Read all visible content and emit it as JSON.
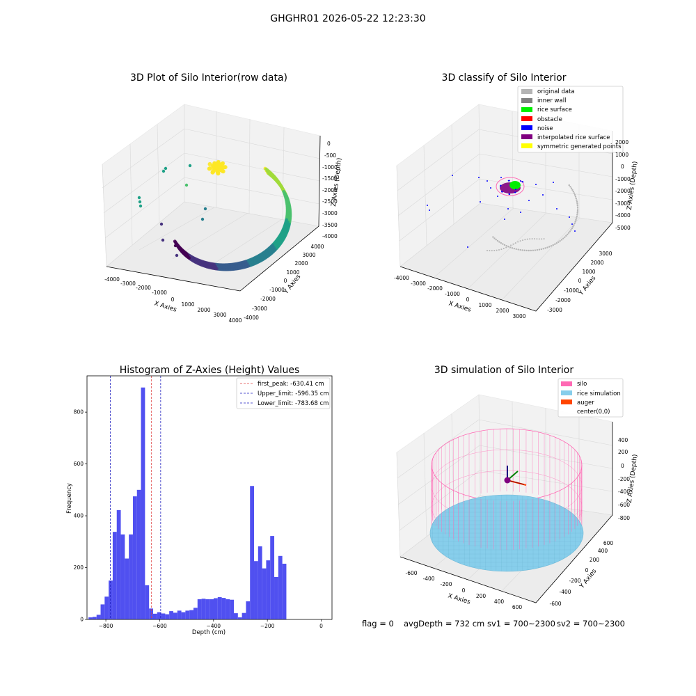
{
  "suptitle": "GHGHR01 2026-05-22 12:23:30",
  "footer": {
    "flag": "flag = 0",
    "avg_depth": "avgDepth = 732 cm",
    "sv1": "sv1 = 700~2300",
    "sv2": "sv2 = 700~2300"
  },
  "colors": {
    "hist_bar": "#5050f0",
    "first_peak": "#e04040",
    "limits": "#2020c0",
    "silo": "#ff69b4",
    "rice": "#87ceeb",
    "auger": "#ff4500"
  },
  "chart_data": [
    {
      "type": "scatter",
      "projection": "3d",
      "title": "3D Plot of Silo Interior(row data)",
      "xlabel": "X Axies",
      "ylabel": "Y Axies",
      "zlabel": "Z Axies (Depth)",
      "xticks": [
        "-4000",
        "-3000",
        "-2000",
        "-1000",
        "0",
        "1000",
        "2000",
        "3000",
        "4000"
      ],
      "yticks": [
        "-4000",
        "-3000",
        "-2000",
        "-1000",
        "0",
        "1000",
        "2000",
        "3000",
        "4000"
      ],
      "zticks": [
        "0",
        "-500",
        "-1000",
        "-1500",
        "-2000",
        "-2500",
        "-3000",
        "-3500",
        "-4000"
      ],
      "colormap": "viridis",
      "grid": true
    },
    {
      "type": "scatter",
      "projection": "3d",
      "title": "3D classify of Silo Interior",
      "xlabel": "X Axies",
      "ylabel": "Y Axies",
      "zlabel": "Z Axies (Depth)",
      "xticks": [
        "-4000",
        "-3000",
        "-2000",
        "-1000",
        "0",
        "1000",
        "2000",
        "3000"
      ],
      "yticks": [
        "-3000",
        "-2000",
        "-1000",
        "0",
        "1000",
        "2000",
        "3000"
      ],
      "zticks": [
        "2000",
        "1000",
        "0",
        "-1000",
        "-2000",
        "-3000",
        "-4000",
        "-5000"
      ],
      "legend_position": "top-right",
      "legend": [
        {
          "label": "original data",
          "color": "#b4b4b4"
        },
        {
          "label": "inner wall",
          "color": "#808080"
        },
        {
          "label": "rice surface",
          "color": "#00ee00"
        },
        {
          "label": "obstacle",
          "color": "#ff0000"
        },
        {
          "label": "noise",
          "color": "#0000ff"
        },
        {
          "label": "interpolated rice surface",
          "color": "#800080"
        },
        {
          "label": "symmetric generated points",
          "color": "#ffff00"
        }
      ],
      "grid": true
    },
    {
      "type": "bar",
      "title": "Histogram of Z-Axies (Height) Values",
      "xlabel": "Depth (cm)",
      "ylabel": "Frequency",
      "xlim": [
        -870,
        40
      ],
      "ylim": [
        0,
        940
      ],
      "xticks": [
        -800,
        -600,
        -400,
        -200,
        0
      ],
      "yticks": [
        0,
        200,
        400,
        600,
        800
      ],
      "bin_width": 15,
      "bins": [
        {
          "x": -857,
          "y": 8
        },
        {
          "x": -842,
          "y": 10
        },
        {
          "x": -827,
          "y": 18
        },
        {
          "x": -812,
          "y": 58
        },
        {
          "x": -797,
          "y": 88
        },
        {
          "x": -782,
          "y": 150
        },
        {
          "x": -767,
          "y": 338
        },
        {
          "x": -752,
          "y": 422
        },
        {
          "x": -737,
          "y": 328
        },
        {
          "x": -722,
          "y": 235
        },
        {
          "x": -707,
          "y": 328
        },
        {
          "x": -692,
          "y": 475
        },
        {
          "x": -677,
          "y": 500
        },
        {
          "x": -662,
          "y": 895
        },
        {
          "x": -647,
          "y": 132
        },
        {
          "x": -632,
          "y": 42
        },
        {
          "x": -617,
          "y": 22
        },
        {
          "x": -602,
          "y": 28
        },
        {
          "x": -587,
          "y": 23
        },
        {
          "x": -572,
          "y": 20
        },
        {
          "x": -557,
          "y": 32
        },
        {
          "x": -542,
          "y": 26
        },
        {
          "x": -527,
          "y": 34
        },
        {
          "x": -512,
          "y": 28
        },
        {
          "x": -497,
          "y": 34
        },
        {
          "x": -482,
          "y": 36
        },
        {
          "x": -467,
          "y": 45
        },
        {
          "x": -452,
          "y": 78
        },
        {
          "x": -437,
          "y": 80
        },
        {
          "x": -422,
          "y": 78
        },
        {
          "x": -407,
          "y": 78
        },
        {
          "x": -392,
          "y": 82
        },
        {
          "x": -377,
          "y": 86
        },
        {
          "x": -362,
          "y": 83
        },
        {
          "x": -347,
          "y": 78
        },
        {
          "x": -332,
          "y": 76
        },
        {
          "x": -317,
          "y": 24
        },
        {
          "x": -302,
          "y": 8
        },
        {
          "x": -287,
          "y": 25
        },
        {
          "x": -272,
          "y": 70
        },
        {
          "x": -257,
          "y": 515
        },
        {
          "x": -242,
          "y": 225
        },
        {
          "x": -227,
          "y": 282
        },
        {
          "x": -212,
          "y": 197
        },
        {
          "x": -197,
          "y": 228
        },
        {
          "x": -182,
          "y": 322
        },
        {
          "x": -167,
          "y": 164
        },
        {
          "x": -152,
          "y": 245
        },
        {
          "x": -137,
          "y": 215
        }
      ],
      "vlines": [
        {
          "label": "first_peak: -630.41 cm",
          "x": -630.41,
          "color": "#e04040"
        },
        {
          "label": "Upper_limit: -596.35 cm",
          "x": -596.35,
          "color": "#2020c0"
        },
        {
          "label": "Lower_limit: -783.68 cm",
          "x": -783.68,
          "color": "#2020c0"
        }
      ],
      "legend_position": "top-right"
    },
    {
      "type": "surface",
      "projection": "3d",
      "title": "3D simulation of Silo Interior",
      "xlabel": "X Axies",
      "ylabel": "Y Axies",
      "zlabel": "Z Axies (Depth)",
      "xticks": [
        "-600",
        "-400",
        "-200",
        "0",
        "200",
        "400",
        "600"
      ],
      "yticks": [
        "-600",
        "-400",
        "-200",
        "0",
        "200",
        "400",
        "600"
      ],
      "zticks": [
        "400",
        "200",
        "0",
        "-200",
        "-400",
        "-600",
        "-800"
      ],
      "legend_position": "top-right",
      "legend": [
        {
          "label": "silo",
          "color": "#ff69b4"
        },
        {
          "label": "rice simulation",
          "color": "#87ceeb"
        },
        {
          "label": "auger",
          "color": "#ff4500"
        },
        {
          "label": "center(0,0)",
          "color": ""
        }
      ],
      "grid": true
    }
  ]
}
